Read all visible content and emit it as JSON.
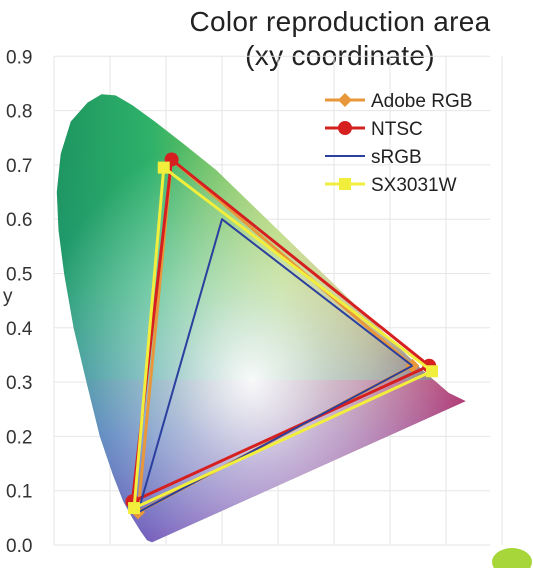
{
  "chart_data": {
    "type": "scatter",
    "title": "Color reproduction area",
    "subtitle": "(xy coordinate)",
    "xlabel": "",
    "ylabel": "y",
    "ylim": [
      0,
      0.9
    ],
    "xlim": [
      0,
      0.8
    ],
    "y_ticks": [
      "0.9",
      "0.8",
      "0.7",
      "0.6",
      "0.5",
      "0.4",
      "0.3",
      "0.2",
      "0.1",
      "0.0"
    ],
    "grid": true,
    "legend_position": "top-right",
    "series": [
      {
        "name": "Adobe RGB",
        "color": "#e8973a",
        "marker": "diamond",
        "points": [
          [
            0.64,
            0.33
          ],
          [
            0.21,
            0.71
          ],
          [
            0.15,
            0.06
          ],
          [
            0.64,
            0.33
          ]
        ]
      },
      {
        "name": "NTSC",
        "color": "#d62020",
        "marker": "circle",
        "points": [
          [
            0.67,
            0.33
          ],
          [
            0.21,
            0.71
          ],
          [
            0.14,
            0.08
          ],
          [
            0.67,
            0.33
          ]
        ]
      },
      {
        "name": "sRGB",
        "color": "#2b3f9e",
        "marker": "none",
        "points": [
          [
            0.64,
            0.33
          ],
          [
            0.3,
            0.6
          ],
          [
            0.15,
            0.06
          ],
          [
            0.64,
            0.33
          ]
        ]
      },
      {
        "name": "SX3031W",
        "color": "#f2ee3c",
        "marker": "square",
        "points": [
          [
            0.675,
            0.32
          ],
          [
            0.196,
            0.695
          ],
          [
            0.143,
            0.068
          ],
          [
            0.675,
            0.32
          ]
        ]
      }
    ]
  }
}
